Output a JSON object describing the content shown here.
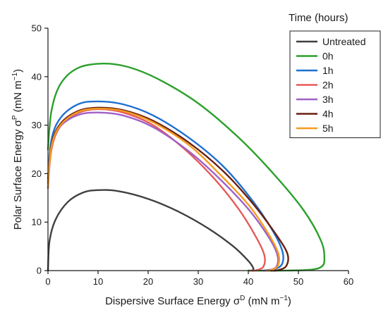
{
  "chart_data": {
    "type": "line",
    "xlabel": "Dispersive Surface Energy σD (mN m−1)",
    "xlabel_parts": {
      "main": "Dispersive Surface Energy σ",
      "sup1": "D",
      "mid": " (mN m",
      "sup2": "−1",
      "end": ")"
    },
    "ylabel": "Polar Surface Energy σP (mN m−1)",
    "ylabel_parts": {
      "main": "Polar Surface Energy σ",
      "sup1": "P",
      "mid": " (mN m",
      "sup2": "−1",
      "end": ")"
    },
    "xlim": [
      0,
      60
    ],
    "ylim": [
      0,
      50
    ],
    "xticks": [
      0,
      10,
      20,
      30,
      40,
      50,
      60
    ],
    "yticks": [
      0,
      10,
      20,
      30,
      40,
      50
    ],
    "grid": false,
    "legend_title": "Time (hours)",
    "legend_position": "top-right",
    "series": [
      {
        "name": "Untreated",
        "color": "#404040",
        "points": [
          [
            0,
            0
          ],
          [
            0.3,
            6
          ],
          [
            1.5,
            10.5
          ],
          [
            4,
            14.2
          ],
          [
            7,
            16.1
          ],
          [
            10,
            16.6
          ],
          [
            14,
            16.4
          ],
          [
            20,
            14.8
          ],
          [
            26,
            12.2
          ],
          [
            32,
            8.7
          ],
          [
            37,
            5.0
          ],
          [
            40,
            2.0
          ],
          [
            41,
            0.5
          ],
          [
            40.8,
            0
          ],
          [
            41,
            0
          ]
        ]
      },
      {
        "name": "0h",
        "color": "#2ca02c",
        "points": [
          [
            0,
            25
          ],
          [
            0.7,
            33
          ],
          [
            2.5,
            38.5
          ],
          [
            6,
            41.8
          ],
          [
            11,
            42.7
          ],
          [
            16,
            42.0
          ],
          [
            22,
            39.5
          ],
          [
            30,
            34.5
          ],
          [
            38,
            27.5
          ],
          [
            45,
            20.0
          ],
          [
            51,
            12.5
          ],
          [
            54.5,
            6.2
          ],
          [
            55.2,
            2.5
          ],
          [
            54.6,
            0.8
          ],
          [
            52,
            0.15
          ],
          [
            46,
            0
          ],
          [
            40,
            0
          ]
        ]
      },
      {
        "name": "1h",
        "color": "#1f6fd1",
        "points": [
          [
            0,
            19
          ],
          [
            0.7,
            27
          ],
          [
            2.5,
            31.5
          ],
          [
            6,
            34.3
          ],
          [
            10,
            34.9
          ],
          [
            15,
            34.3
          ],
          [
            21,
            32.0
          ],
          [
            28,
            27.5
          ],
          [
            35,
            21.5
          ],
          [
            41,
            14.2
          ],
          [
            45,
            8.0
          ],
          [
            46.8,
            4.0
          ],
          [
            46.8,
            1.5
          ],
          [
            45.5,
            0.4
          ],
          [
            43,
            0
          ]
        ]
      },
      {
        "name": "2h",
        "color": "#e65a5a",
        "points": [
          [
            0,
            17
          ],
          [
            0.7,
            25
          ],
          [
            2.5,
            29.8
          ],
          [
            6,
            32.5
          ],
          [
            10,
            33.3
          ],
          [
            15,
            32.6
          ],
          [
            21,
            30.0
          ],
          [
            27,
            25.3
          ],
          [
            33,
            19.2
          ],
          [
            38,
            12.8
          ],
          [
            41.5,
            7.0
          ],
          [
            43.2,
            3.2
          ],
          [
            43.0,
            0.8
          ],
          [
            41.5,
            0.05
          ],
          [
            40.5,
            0
          ]
        ]
      },
      {
        "name": "3h",
        "color": "#a060c8",
        "points": [
          [
            0,
            18
          ],
          [
            0.7,
            25.8
          ],
          [
            2.5,
            29.8
          ],
          [
            6,
            32.1
          ],
          [
            10,
            32.6
          ],
          [
            15,
            32.0
          ],
          [
            21,
            29.6
          ],
          [
            28,
            24.7
          ],
          [
            34,
            19.2
          ],
          [
            40,
            12.7
          ],
          [
            44,
            7.0
          ],
          [
            45.8,
            3.2
          ],
          [
            45.6,
            0.8
          ],
          [
            44,
            0.05
          ],
          [
            43,
            0
          ]
        ]
      },
      {
        "name": "4h",
        "color": "#6b1f10",
        "points": [
          [
            0,
            18
          ],
          [
            0.7,
            26
          ],
          [
            2.5,
            30.3
          ],
          [
            6,
            32.9
          ],
          [
            10,
            33.6
          ],
          [
            15,
            33.1
          ],
          [
            21,
            30.9
          ],
          [
            28,
            26.5
          ],
          [
            35,
            20.5
          ],
          [
            41,
            13.7
          ],
          [
            45.5,
            7.5
          ],
          [
            47.8,
            3.5
          ],
          [
            47.6,
            1.0
          ],
          [
            46,
            0.1
          ],
          [
            44.5,
            0
          ]
        ]
      },
      {
        "name": "5h",
        "color": "#f39c1e",
        "points": [
          [
            0,
            17.5
          ],
          [
            0.7,
            25.6
          ],
          [
            2.5,
            30.0
          ],
          [
            6,
            32.7
          ],
          [
            10,
            33.4
          ],
          [
            15,
            32.9
          ],
          [
            21,
            30.6
          ],
          [
            28,
            26.0
          ],
          [
            34,
            20.2
          ],
          [
            40,
            13.6
          ],
          [
            44,
            7.6
          ],
          [
            46,
            3.5
          ],
          [
            45.9,
            1.0
          ],
          [
            44.5,
            0.1
          ],
          [
            43.5,
            0
          ]
        ]
      }
    ]
  }
}
